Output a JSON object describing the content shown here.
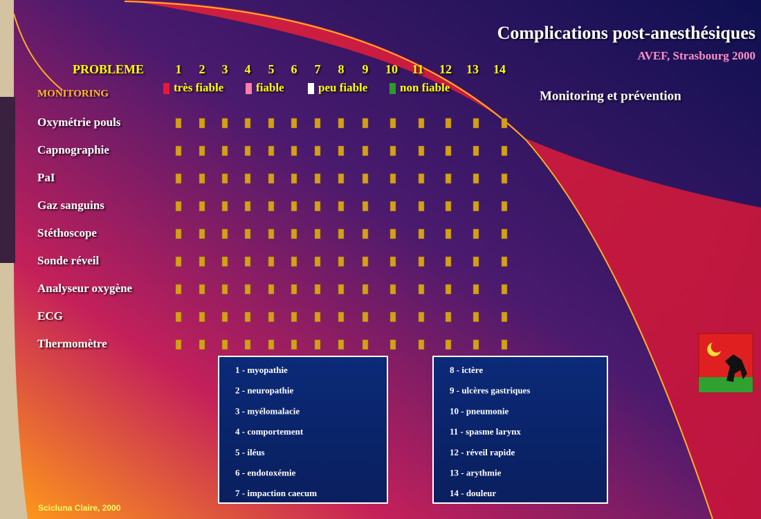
{
  "header": {
    "title": "Complications post-anesthésiques",
    "subtitle": "AVEF, Strasbourg  2000",
    "section": "Monitoring et prévention"
  },
  "table": {
    "problem_label": "PROBLEME",
    "monitoring_label": "MONITORING",
    "problems": [
      "1",
      "2",
      "3",
      "4",
      "5",
      "6",
      "7",
      "8",
      "9",
      "10",
      "11",
      "12",
      "13",
      "14"
    ],
    "rows": [
      "Oxymétrie pouls",
      "Capnographie",
      "PaI",
      "Gaz sanguins",
      "Stéthoscope",
      "Sonde réveil",
      "Analyseur oxygène",
      "ECG",
      "Thermomètre"
    ]
  },
  "legend": [
    {
      "label": "très fiable",
      "color": "#e8173a"
    },
    {
      "label": "fiable",
      "color": "#ff7fa8"
    },
    {
      "label": "peu fiable",
      "color": "#ffffff"
    },
    {
      "label": "non fiable",
      "color": "#2e9a2e"
    }
  ],
  "key_left": [
    "1 - myopathie",
    "2 - neuropathie",
    "3 - myélomalacie",
    "4 - comportement",
    "5 - iléus",
    "6 - endotoxémie",
    "7 - impaction caecum"
  ],
  "key_right": [
    "8 - ictère",
    "9 - ulcères gastriques",
    "10 - pneumonie",
    "11 - spasme larynx",
    "12 - réveil rapide",
    "13 - arythmie",
    "14 - douleur"
  ],
  "footer": "Scicluna Claire, 2000"
}
